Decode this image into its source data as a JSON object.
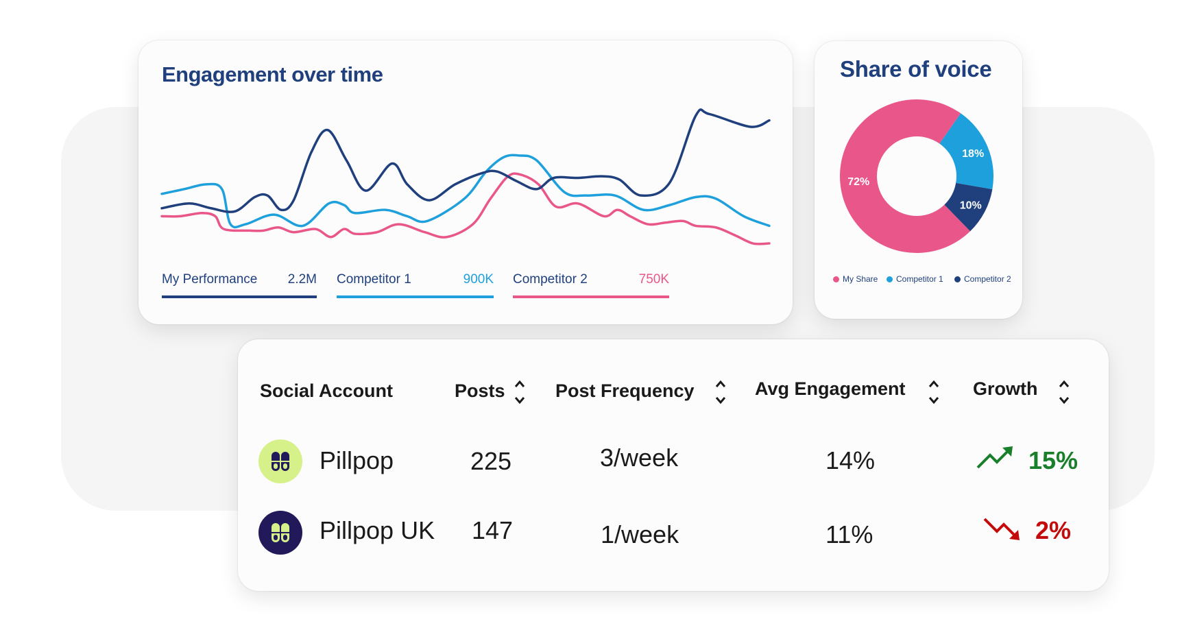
{
  "colors": {
    "my": "#1f3f7d",
    "c1": "#1ea0dc",
    "c2": "#e9578a",
    "up": "#1a7f2a",
    "down": "#c40b0b",
    "title": "#1f3f7d"
  },
  "engagement": {
    "title": "Engagement over time",
    "legend": [
      {
        "name": "My Performance",
        "value": "2.2M"
      },
      {
        "name": "Competitor 1",
        "value": "900K"
      },
      {
        "name": "Competitor 2",
        "value": "750K"
      }
    ]
  },
  "share": {
    "title": "Share of voice",
    "legend": [
      "My Share",
      "Competitor 1",
      "Competitor 2"
    ]
  },
  "chart_data": [
    {
      "type": "line",
      "title": "Engagement over time",
      "xlabel": "",
      "ylabel": "",
      "grid": false,
      "legend": "bottom",
      "series": [
        {
          "name": "My Performance",
          "color": "#1f3f7d",
          "points": [
            [
              0,
              34
            ],
            [
              4.5,
              37
            ],
            [
              8.1,
              34
            ],
            [
              12,
              32
            ],
            [
              15.3,
              41
            ],
            [
              17.4,
              42
            ],
            [
              19.6,
              33
            ],
            [
              21.7,
              39
            ],
            [
              24.6,
              69
            ],
            [
              27.3,
              83
            ],
            [
              30.4,
              64
            ],
            [
              33.6,
              45
            ],
            [
              37.9,
              62
            ],
            [
              40.4,
              49
            ],
            [
              44,
              39
            ],
            [
              48.3,
              49
            ],
            [
              52.7,
              56
            ],
            [
              55.2,
              57
            ],
            [
              58.4,
              51
            ],
            [
              61.7,
              46
            ],
            [
              64.5,
              53
            ],
            [
              68.5,
              53
            ],
            [
              72.4,
              54
            ],
            [
              75.3,
              52
            ],
            [
              78.9,
              42
            ],
            [
              83.6,
              50
            ],
            [
              87.9,
              92
            ],
            [
              90.1,
              93
            ],
            [
              96.9,
              85
            ],
            [
              100,
              89
            ]
          ]
        },
        {
          "name": "Competitor 1",
          "color": "#1ea0dc",
          "points": [
            [
              0,
              43
            ],
            [
              3.7,
              46
            ],
            [
              7.3,
              49
            ],
            [
              9.9,
              46
            ],
            [
              11.3,
              24
            ],
            [
              13.8,
              24
            ],
            [
              18.5,
              30
            ],
            [
              23.2,
              23
            ],
            [
              27.5,
              37
            ],
            [
              30,
              36
            ],
            [
              31.8,
              31
            ],
            [
              36.8,
              33
            ],
            [
              40.4,
              29
            ],
            [
              43.7,
              26
            ],
            [
              49.8,
              40
            ],
            [
              53.4,
              57
            ],
            [
              56.3,
              66
            ],
            [
              58.8,
              67
            ],
            [
              61.7,
              64
            ],
            [
              66.3,
              44
            ],
            [
              69.9,
              42
            ],
            [
              74.6,
              42
            ],
            [
              79.3,
              33
            ],
            [
              83.6,
              36
            ],
            [
              87.9,
              41
            ],
            [
              91.2,
              40
            ],
            [
              95.8,
              29
            ],
            [
              100,
              23
            ]
          ]
        },
        {
          "name": "Competitor 2",
          "color": "#e9578a",
          "points": [
            [
              0,
              29
            ],
            [
              3,
              29
            ],
            [
              6.6,
              31
            ],
            [
              8.8,
              29
            ],
            [
              10.2,
              21
            ],
            [
              14.5,
              20
            ],
            [
              16.7,
              20
            ],
            [
              19.2,
              22
            ],
            [
              21.7,
              19
            ],
            [
              25.3,
              21
            ],
            [
              27.8,
              16
            ],
            [
              30,
              21
            ],
            [
              31.8,
              18
            ],
            [
              35.4,
              19
            ],
            [
              39,
              24
            ],
            [
              43.3,
              19
            ],
            [
              46.9,
              16
            ],
            [
              51.2,
              24
            ],
            [
              54.1,
              40
            ],
            [
              57,
              54
            ],
            [
              59.1,
              55
            ],
            [
              62,
              49
            ],
            [
              64.9,
              35
            ],
            [
              68.5,
              37
            ],
            [
              72.8,
              29
            ],
            [
              75,
              33
            ],
            [
              77.1,
              29
            ],
            [
              80,
              24
            ],
            [
              82.9,
              25
            ],
            [
              85.8,
              26
            ],
            [
              87.9,
              23
            ],
            [
              91.2,
              22
            ],
            [
              94.4,
              17
            ],
            [
              97.3,
              12
            ],
            [
              100,
              12
            ]
          ]
        }
      ]
    },
    {
      "type": "pie",
      "title": "Share of voice",
      "donut": true,
      "legend": "bottom",
      "slices": [
        {
          "name": "My Share",
          "value": 72,
          "label": "72%",
          "color": "#e9578a"
        },
        {
          "name": "Competitor 1",
          "value": 18,
          "label": "18%",
          "color": "#1ea0dc"
        },
        {
          "name": "Competitor 2",
          "value": 10,
          "label": "10%",
          "color": "#1f3f7d"
        }
      ]
    }
  ],
  "table": {
    "headers": [
      "Social Account",
      "Posts",
      "Post Frequency",
      "Avg Engagement",
      "Growth"
    ],
    "rows": [
      {
        "account": "Pillpop",
        "posts": "225",
        "frequency": "3/week",
        "engagement": "14%",
        "growth": "15%",
        "trend": "up",
        "avatar_bg": "#d6f08a",
        "avatar_fg": "#21195a"
      },
      {
        "account": "Pillpop UK",
        "posts": "147",
        "frequency": "1/week",
        "engagement": "11%",
        "growth": "2%",
        "trend": "down",
        "avatar_bg": "#21195a",
        "avatar_fg": "#d6f08a"
      }
    ]
  }
}
